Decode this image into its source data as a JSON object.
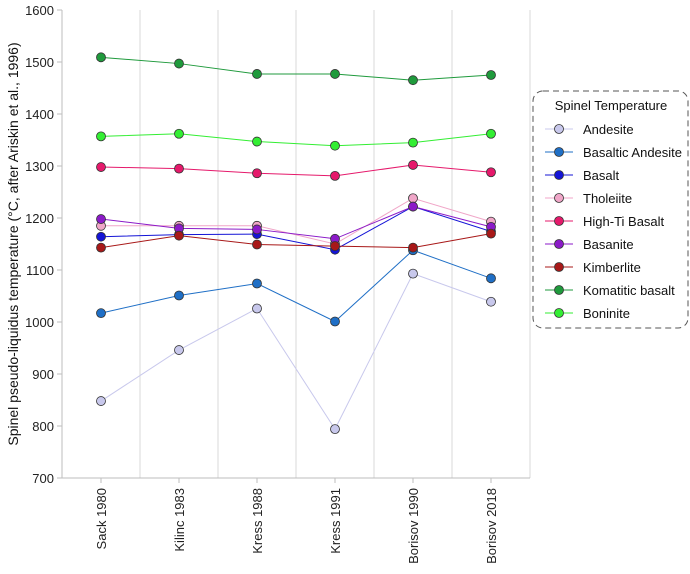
{
  "chart_data": {
    "type": "line",
    "title": "",
    "xlabel": "",
    "ylabel": "Spinel pseudo-liquidus temperature  (°C, after Ariskin et al., 1996)",
    "ylim": [
      700,
      1600
    ],
    "yticks": [
      700,
      800,
      900,
      1000,
      1100,
      1200,
      1300,
      1400,
      1500,
      1600
    ],
    "grid": "vertical",
    "legend_title": "Spinel Temperature",
    "legend_position": "right",
    "categories": [
      "Sack 1980",
      "Kilinc 1983",
      "Kress 1988",
      "Kress 1991",
      "Borisov 1990",
      "Borisov 2018"
    ],
    "series": [
      {
        "name": "Andesite",
        "color": "#c8c8ec",
        "values": [
          848,
          946,
          1026,
          794,
          1093,
          1039
        ]
      },
      {
        "name": "Basaltic Andesite",
        "color": "#1f6fc6",
        "values": [
          1017,
          1051,
          1074,
          1001,
          1138,
          1084
        ]
      },
      {
        "name": "Basalt",
        "color": "#1414d6",
        "values": [
          1164,
          1168,
          1169,
          1139,
          1222,
          1174
        ]
      },
      {
        "name": "Tholeiite",
        "color": "#f0a6c8",
        "values": [
          1185,
          1185,
          1185,
          1150,
          1238,
          1193
        ]
      },
      {
        "name": "High-Ti Basalt",
        "color": "#e5196b",
        "values": [
          1298,
          1295,
          1286,
          1281,
          1302,
          1288
        ]
      },
      {
        "name": "Basanite",
        "color": "#8b1ac8",
        "values": [
          1198,
          1180,
          1178,
          1160,
          1222,
          1183
        ]
      },
      {
        "name": "Kimberlite",
        "color": "#a81818",
        "values": [
          1143,
          1166,
          1149,
          1146,
          1143,
          1170
        ]
      },
      {
        "name": "Komatitic basalt",
        "color": "#1f9a3c",
        "values": [
          1509,
          1497,
          1477,
          1477,
          1465,
          1475
        ]
      },
      {
        "name": "Boninite",
        "color": "#33ee33",
        "values": [
          1357,
          1362,
          1347,
          1339,
          1345,
          1362
        ]
      }
    ]
  }
}
